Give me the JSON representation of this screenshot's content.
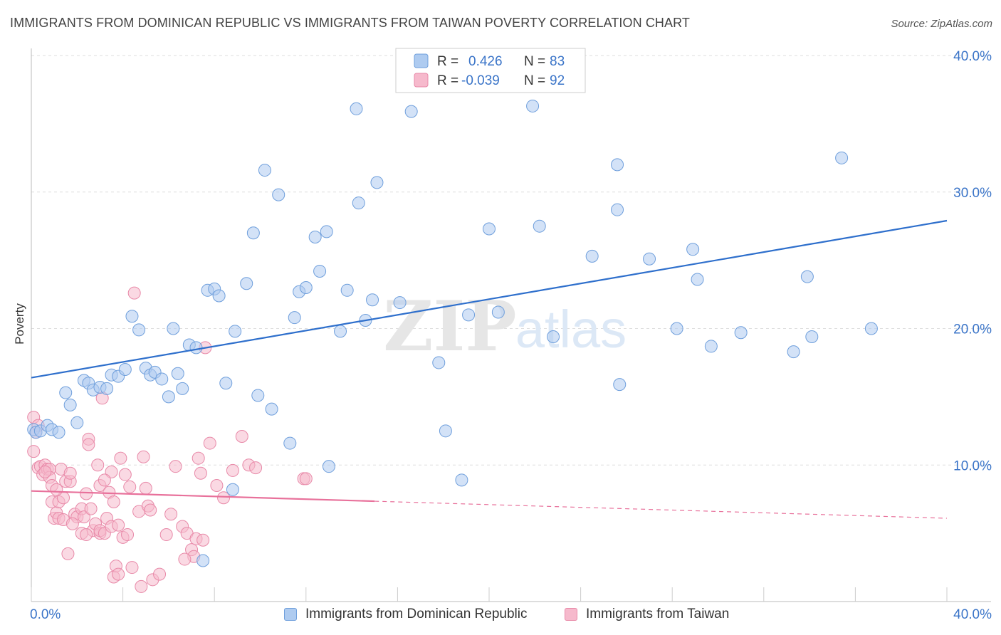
{
  "header": {
    "title": "IMMIGRANTS FROM DOMINICAN REPUBLIC VS IMMIGRANTS FROM TAIWAN POVERTY CORRELATION CHART",
    "source": "Source: ZipAtlas.com"
  },
  "watermark": {
    "zip": "ZIP",
    "atlas": "atlas"
  },
  "legend_box": {
    "series": [
      {
        "r_label": "R =",
        "r_value": "0.426",
        "n_label": "N =",
        "n_value": "83"
      },
      {
        "r_label": "R =",
        "r_value": "-0.039",
        "n_label": "N =",
        "n_value": "92"
      }
    ]
  },
  "colors": {
    "blue_fill": "#aecbf0",
    "blue_stroke": "#6f9fdc",
    "blue_line": "#2e6fcc",
    "pink_fill": "#f6b9cc",
    "pink_stroke": "#e889a8",
    "pink_line": "#e8719b",
    "value_text": "#3a74c8",
    "grid": "#dddddd"
  },
  "chart_data": {
    "type": "scatter",
    "title": "IMMIGRANTS FROM DOMINICAN REPUBLIC VS IMMIGRANTS FROM TAIWAN POVERTY CORRELATION CHART",
    "xlabel": "",
    "ylabel": "Poverty",
    "xlim": [
      0,
      40
    ],
    "ylim": [
      0,
      40
    ],
    "x_tick_labels": [
      "0.0%",
      "40.0%"
    ],
    "y_tick_values": [
      10,
      20,
      30,
      40
    ],
    "y_tick_labels": [
      "10.0%",
      "20.0%",
      "30.0%",
      "40.0%"
    ],
    "grid": true,
    "legend_position": "top-center",
    "series": [
      {
        "name": "Immigrants from Dominican Republic",
        "r": 0.426,
        "n": 83,
        "trend": {
          "x": [
            0,
            40
          ],
          "y": [
            16.4,
            27.9
          ]
        },
        "points": [
          [
            0.1,
            12.6
          ],
          [
            0.2,
            12.4
          ],
          [
            0.4,
            12.5
          ],
          [
            0.7,
            12.9
          ],
          [
            0.9,
            12.6
          ],
          [
            1.2,
            12.4
          ],
          [
            1.5,
            15.3
          ],
          [
            1.7,
            14.4
          ],
          [
            2.0,
            13.1
          ],
          [
            2.3,
            16.2
          ],
          [
            2.5,
            16.0
          ],
          [
            2.7,
            15.5
          ],
          [
            3.0,
            15.7
          ],
          [
            3.3,
            15.6
          ],
          [
            3.5,
            16.6
          ],
          [
            3.8,
            16.5
          ],
          [
            4.1,
            17.0
          ],
          [
            4.4,
            20.9
          ],
          [
            4.7,
            19.9
          ],
          [
            5.0,
            17.1
          ],
          [
            5.2,
            16.6
          ],
          [
            5.4,
            16.8
          ],
          [
            5.7,
            16.3
          ],
          [
            6.0,
            15.0
          ],
          [
            6.2,
            20.0
          ],
          [
            6.4,
            16.7
          ],
          [
            6.6,
            15.6
          ],
          [
            6.9,
            18.8
          ],
          [
            7.2,
            18.6
          ],
          [
            7.7,
            22.8
          ],
          [
            8.0,
            22.9
          ],
          [
            8.2,
            22.4
          ],
          [
            8.5,
            16.0
          ],
          [
            8.8,
            8.2
          ],
          [
            8.9,
            19.8
          ],
          [
            9.4,
            23.3
          ],
          [
            9.7,
            27.0
          ],
          [
            9.9,
            15.1
          ],
          [
            10.2,
            31.6
          ],
          [
            10.5,
            14.1
          ],
          [
            10.8,
            29.8
          ],
          [
            11.3,
            11.6
          ],
          [
            11.5,
            20.8
          ],
          [
            11.7,
            22.7
          ],
          [
            12.0,
            23.0
          ],
          [
            12.4,
            26.7
          ],
          [
            12.6,
            24.2
          ],
          [
            12.9,
            27.1
          ],
          [
            13.0,
            9.9
          ],
          [
            13.5,
            19.8
          ],
          [
            13.8,
            22.8
          ],
          [
            14.2,
            36.1
          ],
          [
            14.3,
            29.2
          ],
          [
            14.6,
            20.6
          ],
          [
            14.9,
            22.1
          ],
          [
            15.1,
            30.7
          ],
          [
            16.1,
            21.9
          ],
          [
            16.6,
            35.9
          ],
          [
            17.8,
            17.5
          ],
          [
            18.1,
            12.5
          ],
          [
            18.8,
            8.9
          ],
          [
            19.1,
            21.0
          ],
          [
            20.0,
            27.3
          ],
          [
            20.4,
            21.2
          ],
          [
            21.9,
            36.3
          ],
          [
            22.2,
            27.5
          ],
          [
            22.8,
            19.4
          ],
          [
            24.5,
            25.3
          ],
          [
            25.6,
            32.0
          ],
          [
            25.7,
            15.9
          ],
          [
            25.6,
            28.7
          ],
          [
            27.0,
            25.1
          ],
          [
            28.2,
            20.0
          ],
          [
            28.9,
            25.8
          ],
          [
            29.1,
            23.6
          ],
          [
            29.7,
            18.7
          ],
          [
            31.0,
            19.7
          ],
          [
            33.3,
            18.3
          ],
          [
            33.9,
            23.8
          ],
          [
            34.1,
            19.4
          ],
          [
            35.4,
            32.5
          ],
          [
            36.7,
            20.0
          ],
          [
            7.5,
            3.0
          ]
        ]
      },
      {
        "name": "Immigrants from Taiwan",
        "r": -0.039,
        "n": 92,
        "trend": {
          "x": [
            0,
            40
          ],
          "y": [
            8.1,
            6.1
          ],
          "solid_until_x": 15
        },
        "points": [
          [
            0.1,
            13.5
          ],
          [
            0.1,
            11.0
          ],
          [
            0.2,
            12.4
          ],
          [
            0.3,
            12.9
          ],
          [
            0.3,
            9.8
          ],
          [
            0.4,
            9.9
          ],
          [
            0.5,
            9.3
          ],
          [
            0.6,
            10.0
          ],
          [
            0.7,
            9.7
          ],
          [
            0.8,
            9.7
          ],
          [
            0.8,
            9.1
          ],
          [
            0.9,
            8.5
          ],
          [
            0.9,
            7.3
          ],
          [
            1.0,
            6.1
          ],
          [
            1.1,
            6.5
          ],
          [
            1.2,
            7.3
          ],
          [
            1.2,
            6.1
          ],
          [
            1.3,
            9.7
          ],
          [
            1.4,
            7.6
          ],
          [
            1.4,
            6.0
          ],
          [
            1.5,
            8.8
          ],
          [
            1.6,
            3.5
          ],
          [
            1.7,
            8.8
          ],
          [
            1.7,
            9.4
          ],
          [
            1.9,
            6.4
          ],
          [
            2.0,
            6.2
          ],
          [
            2.2,
            6.8
          ],
          [
            2.2,
            5.0
          ],
          [
            2.3,
            6.2
          ],
          [
            2.4,
            7.9
          ],
          [
            2.5,
            11.9
          ],
          [
            2.5,
            11.5
          ],
          [
            2.6,
            6.8
          ],
          [
            2.7,
            5.2
          ],
          [
            2.8,
            5.7
          ],
          [
            2.9,
            10.0
          ],
          [
            3.0,
            5.0
          ],
          [
            3.0,
            5.2
          ],
          [
            3.0,
            8.5
          ],
          [
            3.1,
            14.9
          ],
          [
            3.2,
            5.0
          ],
          [
            3.3,
            6.1
          ],
          [
            3.4,
            8.0
          ],
          [
            3.5,
            9.5
          ],
          [
            3.5,
            5.5
          ],
          [
            3.6,
            7.3
          ],
          [
            3.6,
            1.8
          ],
          [
            3.7,
            2.6
          ],
          [
            3.8,
            5.6
          ],
          [
            3.8,
            2.0
          ],
          [
            3.9,
            10.5
          ],
          [
            4.0,
            4.7
          ],
          [
            4.1,
            9.3
          ],
          [
            4.3,
            8.4
          ],
          [
            4.4,
            2.5
          ],
          [
            4.5,
            22.6
          ],
          [
            4.7,
            6.6
          ],
          [
            4.8,
            1.1
          ],
          [
            4.9,
            10.6
          ],
          [
            5.0,
            8.3
          ],
          [
            5.1,
            7.0
          ],
          [
            5.2,
            6.7
          ],
          [
            5.3,
            1.6
          ],
          [
            5.6,
            2.0
          ],
          [
            5.9,
            4.9
          ],
          [
            6.1,
            6.4
          ],
          [
            6.3,
            9.9
          ],
          [
            6.6,
            5.5
          ],
          [
            6.8,
            5.0
          ],
          [
            7.0,
            3.8
          ],
          [
            7.1,
            3.3
          ],
          [
            7.2,
            4.6
          ],
          [
            7.3,
            10.5
          ],
          [
            7.4,
            9.4
          ],
          [
            7.5,
            4.5
          ],
          [
            7.6,
            18.6
          ],
          [
            7.8,
            11.6
          ],
          [
            8.1,
            8.5
          ],
          [
            8.4,
            7.6
          ],
          [
            8.8,
            9.6
          ],
          [
            9.2,
            12.1
          ],
          [
            9.5,
            10.0
          ],
          [
            9.8,
            9.8
          ],
          [
            11.9,
            9.0
          ],
          [
            12.0,
            9.0
          ],
          [
            2.4,
            4.9
          ],
          [
            1.8,
            5.7
          ],
          [
            0.6,
            9.5
          ],
          [
            1.1,
            8.2
          ],
          [
            6.7,
            3.1
          ],
          [
            4.2,
            4.9
          ],
          [
            3.2,
            8.9
          ]
        ]
      }
    ]
  },
  "bottom_legend": {
    "items": [
      {
        "label": "Immigrants from Dominican Republic"
      },
      {
        "label": "Immigrants from Taiwan"
      }
    ]
  }
}
